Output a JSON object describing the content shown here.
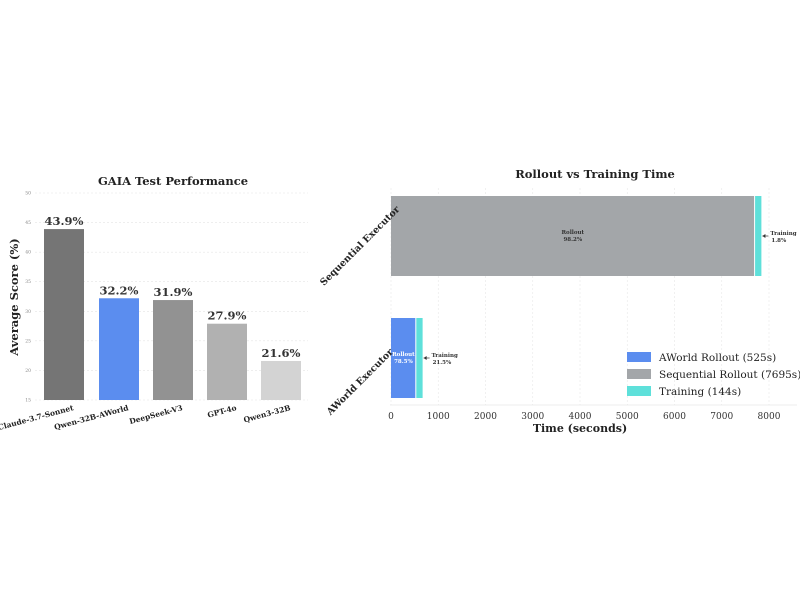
{
  "colors": {
    "bars": [
      "#757575",
      "#5b8def",
      "#929292",
      "#b1b1b1",
      "#d3d3d3"
    ],
    "aworld_rollout": "#5b8def",
    "sequential_rollout": "#a3a6a9",
    "training": "#5ee0da"
  },
  "chart_data": [
    {
      "type": "bar",
      "title": "GAIA Test Performance",
      "xlabel": "",
      "ylabel": "Average Score (%)",
      "categories": [
        "Claude-3.7-Sonnet",
        "Qwen-32B-AWorld",
        "DeepSeek-V3",
        "GPT-4o",
        "Qwen3-32B"
      ],
      "values": [
        43.9,
        32.2,
        31.9,
        27.9,
        21.6
      ],
      "value_labels": [
        "43.9%",
        "32.2%",
        "31.9%",
        "27.9%",
        "21.6%"
      ],
      "ylim": [
        15,
        50
      ],
      "yticks": [
        "15",
        "20",
        "25",
        "30",
        "35",
        "40",
        "45",
        "50"
      ],
      "grid": true
    },
    {
      "type": "bar",
      "orientation": "horizontal",
      "stacked": true,
      "title": "Rollout vs Training Time",
      "xlabel": "Time (seconds)",
      "ylabel": "",
      "categories": [
        "Sequential Executor",
        "AWorld Executor"
      ],
      "xlim": [
        0,
        8000
      ],
      "xticks": [
        "0",
        "1000",
        "2000",
        "3000",
        "4000",
        "5000",
        "6000",
        "7000",
        "8000"
      ],
      "series": [
        {
          "name": "AWorld Rollout (525s)",
          "values": [
            0,
            525
          ]
        },
        {
          "name": "Sequential Rollout (7695s)",
          "values": [
            7695,
            0
          ]
        },
        {
          "name": "Training (144s)",
          "values": [
            144,
            144
          ]
        }
      ],
      "annotations": {
        "sequential": {
          "rollout": [
            "Rollout",
            "98.2%"
          ],
          "training": [
            "Training",
            "1.8%"
          ]
        },
        "aworld": {
          "rollout": [
            "Rollout",
            "78.5%"
          ],
          "training": [
            "Training",
            "21.5%"
          ]
        }
      },
      "legend_position": "lower-right",
      "grid": true
    }
  ]
}
